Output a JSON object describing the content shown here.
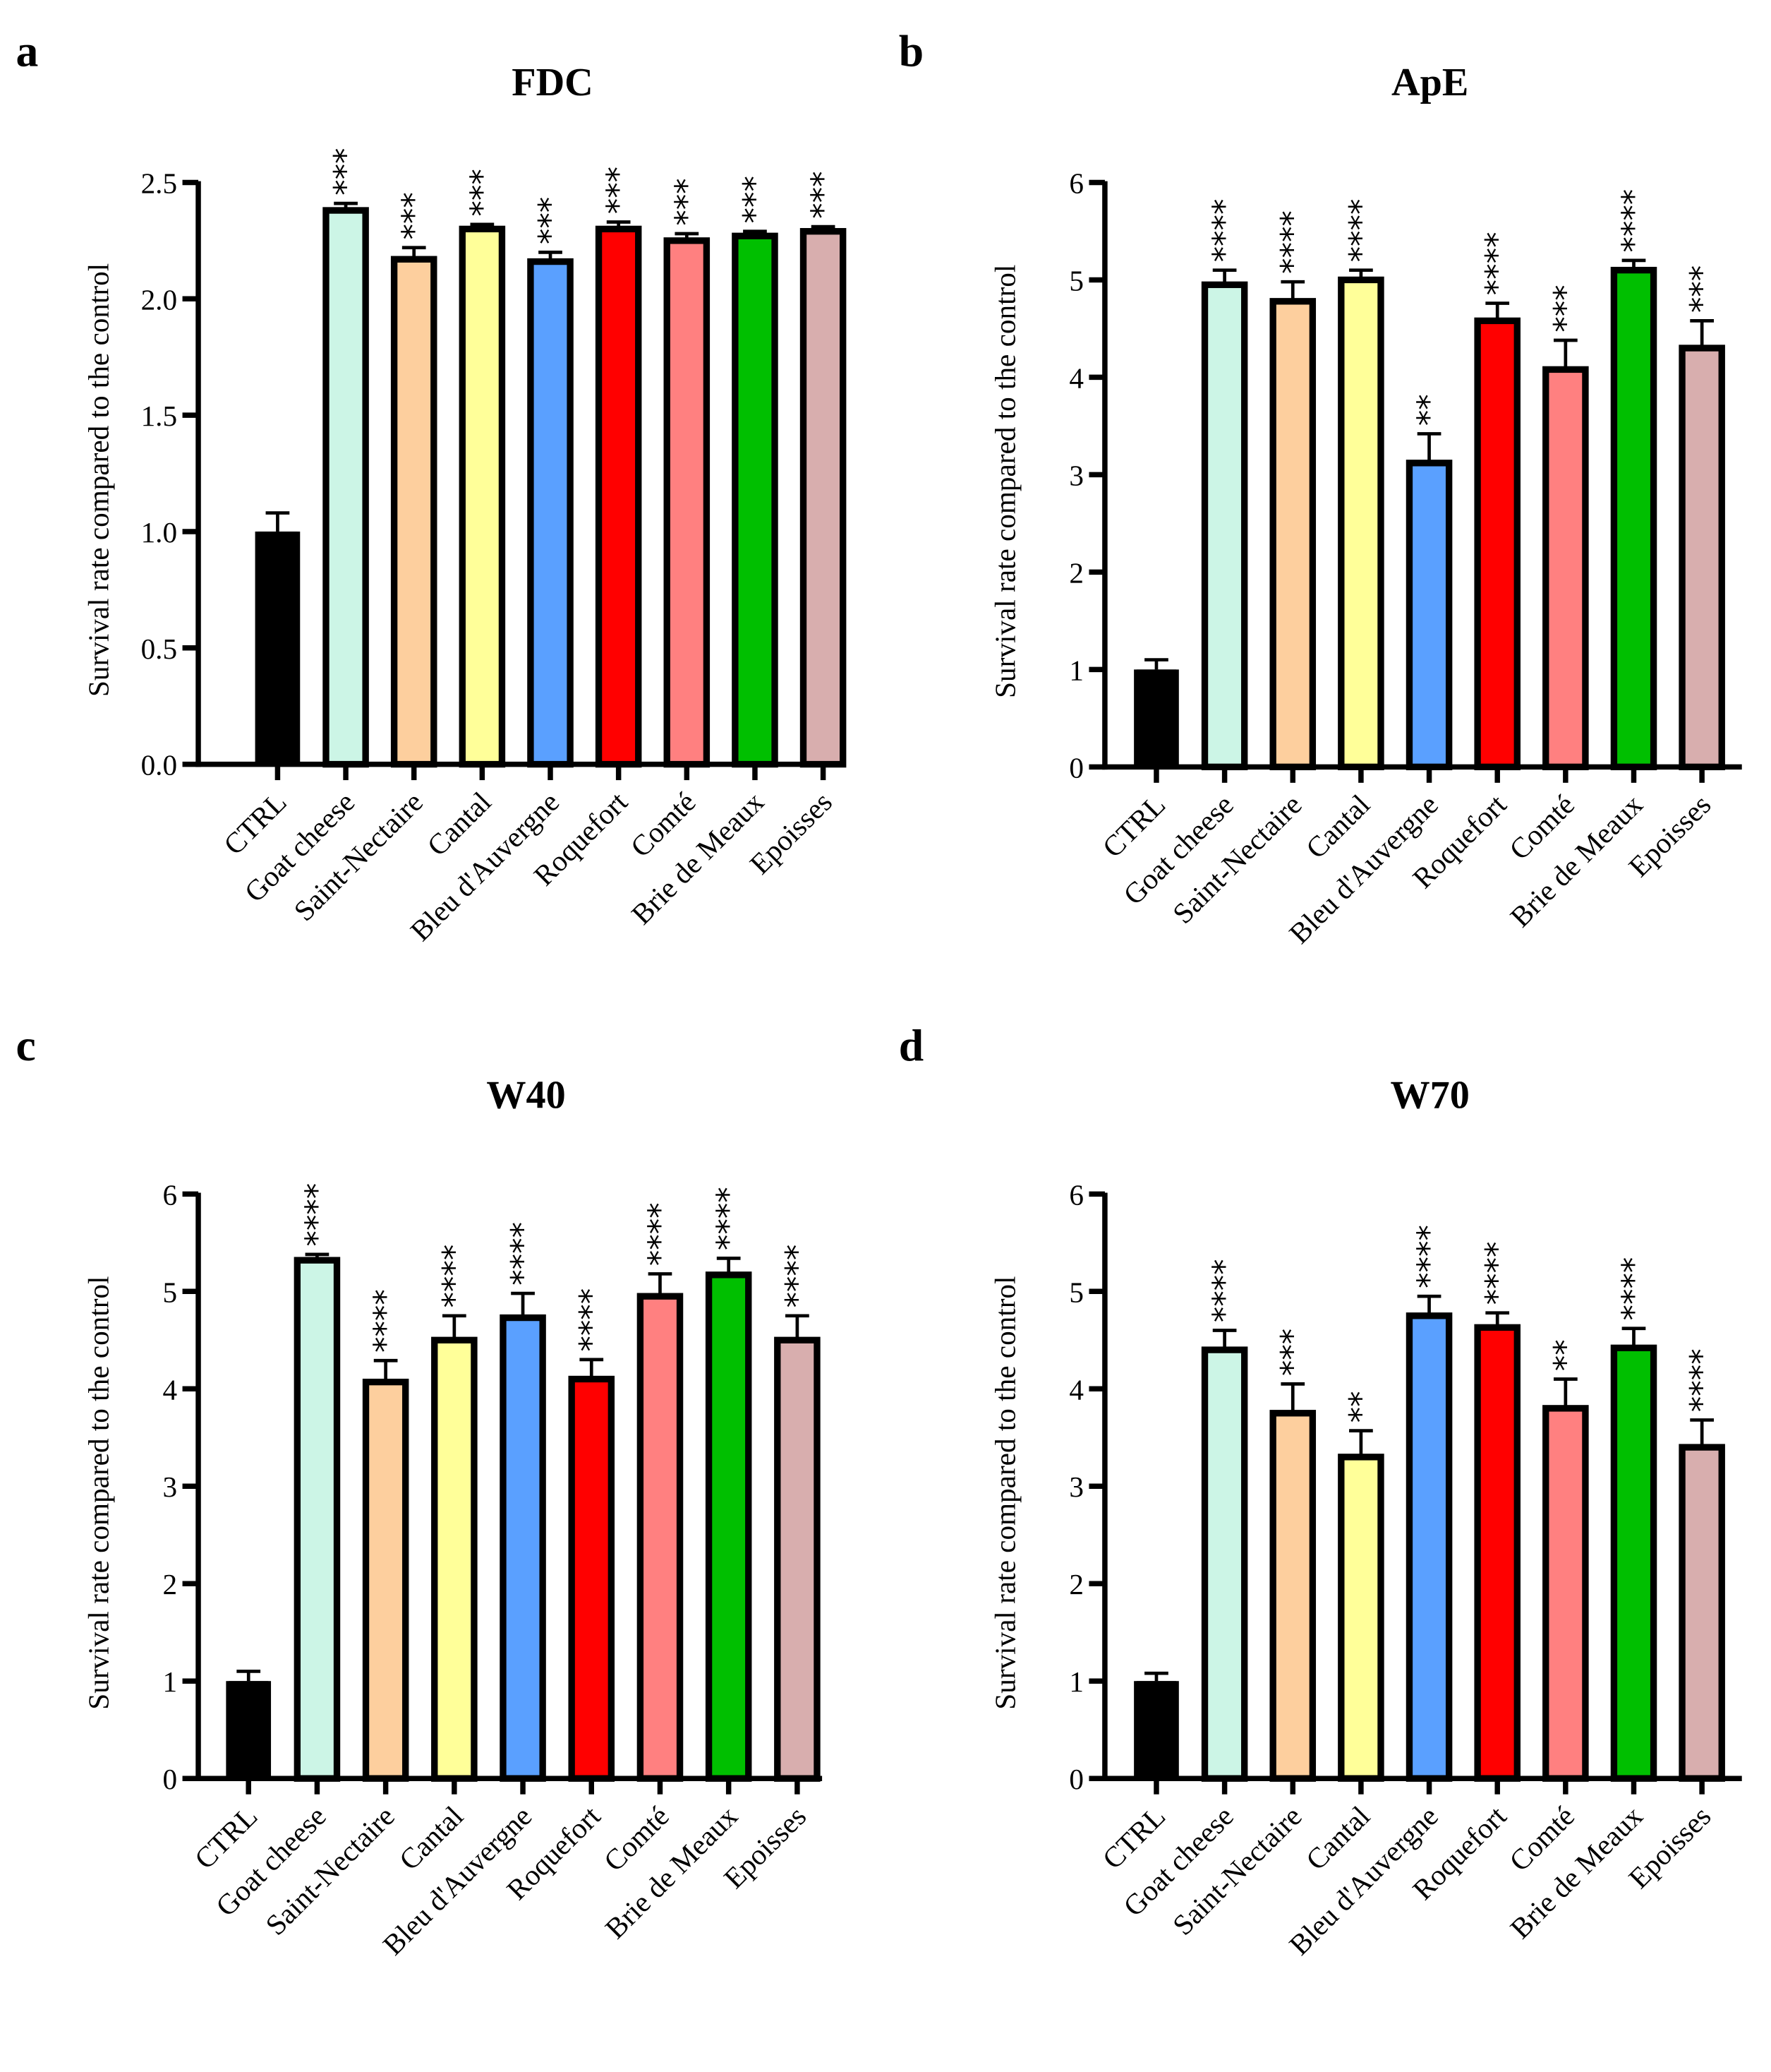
{
  "figure": {
    "ylabel": "Survival rate compared to the control"
  },
  "chart_data": [
    {
      "type": "bar",
      "panel": "a",
      "title": "FDC",
      "ylabel": "Survival rate compared to the control",
      "categories": [
        "CTRL",
        "Goat cheese",
        "Saint-Nectaire",
        "Cantal",
        "Bleu d'Auvergne",
        "Roquefort",
        "Comté",
        "Brie de Meaux",
        "Epoisses"
      ],
      "values": [
        1.0,
        2.38,
        2.17,
        2.3,
        2.16,
        2.3,
        2.25,
        2.27,
        2.29
      ],
      "errors": [
        0.08,
        0.03,
        0.05,
        0.02,
        0.04,
        0.03,
        0.03,
        0.02,
        0.02
      ],
      "significance": [
        "",
        "***",
        "***",
        "***",
        "***",
        "***",
        "***",
        "***",
        "***"
      ],
      "ylim": [
        0,
        2.5
      ],
      "yticks": [
        "0.0",
        "0.5",
        "1.0",
        "1.5",
        "2.0",
        "2.5"
      ],
      "ytick_values": [
        0,
        0.5,
        1,
        1.5,
        2,
        2.5
      ]
    },
    {
      "type": "bar",
      "panel": "b",
      "title": "ApE",
      "ylabel": "Survival rate compared to the control",
      "categories": [
        "CTRL",
        "Goat cheese",
        "Saint-Nectaire",
        "Cantal",
        "Bleu d'Auvergne",
        "Roquefort",
        "Comté",
        "Brie de Meaux",
        "Epoisses"
      ],
      "values": [
        1.0,
        4.95,
        4.78,
        5.0,
        3.12,
        4.58,
        4.08,
        5.1,
        4.3
      ],
      "errors": [
        0.1,
        0.15,
        0.2,
        0.1,
        0.3,
        0.18,
        0.3,
        0.1,
        0.28
      ],
      "significance": [
        "",
        "****",
        "****",
        "****",
        "**",
        "****",
        "***",
        "****",
        "***"
      ],
      "ylim": [
        0,
        6
      ],
      "yticks": [
        "0",
        "1",
        "2",
        "3",
        "4",
        "5",
        "6"
      ],
      "ytick_values": [
        0,
        1,
        2,
        3,
        4,
        5,
        6
      ]
    },
    {
      "type": "bar",
      "panel": "c",
      "title": "W40",
      "ylabel": "Survival rate compared to the control",
      "categories": [
        "CTRL",
        "Goat cheese",
        "Saint-Nectaire",
        "Cantal",
        "Bleu d'Auvergne",
        "Roquefort",
        "Comté",
        "Brie de Meaux",
        "Epoisses"
      ],
      "values": [
        1.0,
        5.32,
        4.07,
        4.5,
        4.73,
        4.1,
        4.95,
        5.17,
        4.5
      ],
      "errors": [
        0.1,
        0.06,
        0.22,
        0.25,
        0.25,
        0.2,
        0.23,
        0.17,
        0.25
      ],
      "significance": [
        "",
        "****",
        "****",
        "****",
        "****",
        "****",
        "****",
        "****",
        "****"
      ],
      "ylim": [
        0,
        6
      ],
      "yticks": [
        "0",
        "1",
        "2",
        "3",
        "4",
        "5",
        "6"
      ],
      "ytick_values": [
        0,
        1,
        2,
        3,
        4,
        5,
        6
      ]
    },
    {
      "type": "bar",
      "panel": "d",
      "title": "W70",
      "ylabel": "Survival rate compared to the control",
      "categories": [
        "CTRL",
        "Goat cheese",
        "Saint-Nectaire",
        "Cantal",
        "Bleu d'Auvergne",
        "Roquefort",
        "Comté",
        "Brie de Meaux",
        "Epoisses"
      ],
      "values": [
        1.0,
        4.4,
        3.75,
        3.3,
        4.75,
        4.63,
        3.8,
        4.42,
        3.4
      ],
      "errors": [
        0.08,
        0.2,
        0.3,
        0.27,
        0.2,
        0.15,
        0.3,
        0.2,
        0.28
      ],
      "significance": [
        "",
        "****",
        "***",
        "**",
        "****",
        "****",
        "**",
        "****",
        "****"
      ],
      "ylim": [
        0,
        6
      ],
      "yticks": [
        "0",
        "1",
        "2",
        "3",
        "4",
        "5",
        "6"
      ],
      "ytick_values": [
        0,
        1,
        2,
        3,
        4,
        5,
        6
      ]
    }
  ],
  "colors": [
    "#000000",
    "#ccf5e6",
    "#fdcf9e",
    "#ffff99",
    "#5aa0ff",
    "#ff0000",
    "#ff8080",
    "#00bf00",
    "#d8aeae"
  ]
}
